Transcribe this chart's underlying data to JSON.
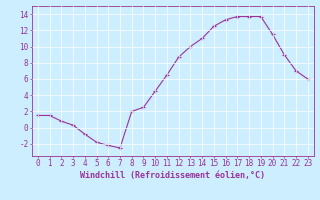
{
  "x": [
    0,
    1,
    2,
    3,
    4,
    5,
    6,
    7,
    8,
    9,
    10,
    11,
    12,
    13,
    14,
    15,
    16,
    17,
    18,
    19,
    20,
    21,
    22,
    23
  ],
  "y": [
    1.5,
    1.5,
    0.8,
    0.3,
    -0.8,
    -1.8,
    -2.2,
    -2.5,
    2.0,
    2.5,
    4.5,
    6.5,
    8.7,
    10.0,
    11.0,
    12.5,
    13.3,
    13.7,
    13.7,
    13.7,
    11.5,
    9.0,
    7.0,
    6.0
  ],
  "line_color": "#993399",
  "marker": "+",
  "bg_color": "#cceeff",
  "grid_color": "#ffffff",
  "xlabel": "Windchill (Refroidissement éolien,°C)",
  "xlabel_color": "#993399",
  "tick_color": "#993399",
  "xlim": [
    -0.5,
    23.5
  ],
  "ylim": [
    -3.5,
    15.0
  ],
  "yticks": [
    -2,
    0,
    2,
    4,
    6,
    8,
    10,
    12,
    14
  ],
  "xticks": [
    0,
    1,
    2,
    3,
    4,
    5,
    6,
    7,
    8,
    9,
    10,
    11,
    12,
    13,
    14,
    15,
    16,
    17,
    18,
    19,
    20,
    21,
    22,
    23
  ],
  "xtick_labels": [
    "0",
    "1",
    "2",
    "3",
    "4",
    "5",
    "6",
    "7",
    "8",
    "9",
    "10",
    "11",
    "12",
    "13",
    "14",
    "15",
    "16",
    "17",
    "18",
    "19",
    "20",
    "21",
    "22",
    "23"
  ],
  "spine_color": "#993399",
  "font_family": "monospace",
  "label_fontsize": 5.5,
  "tick_fontsize": 5.5,
  "xlabel_fontsize": 6.0,
  "linewidth": 0.8,
  "markersize": 3.0
}
